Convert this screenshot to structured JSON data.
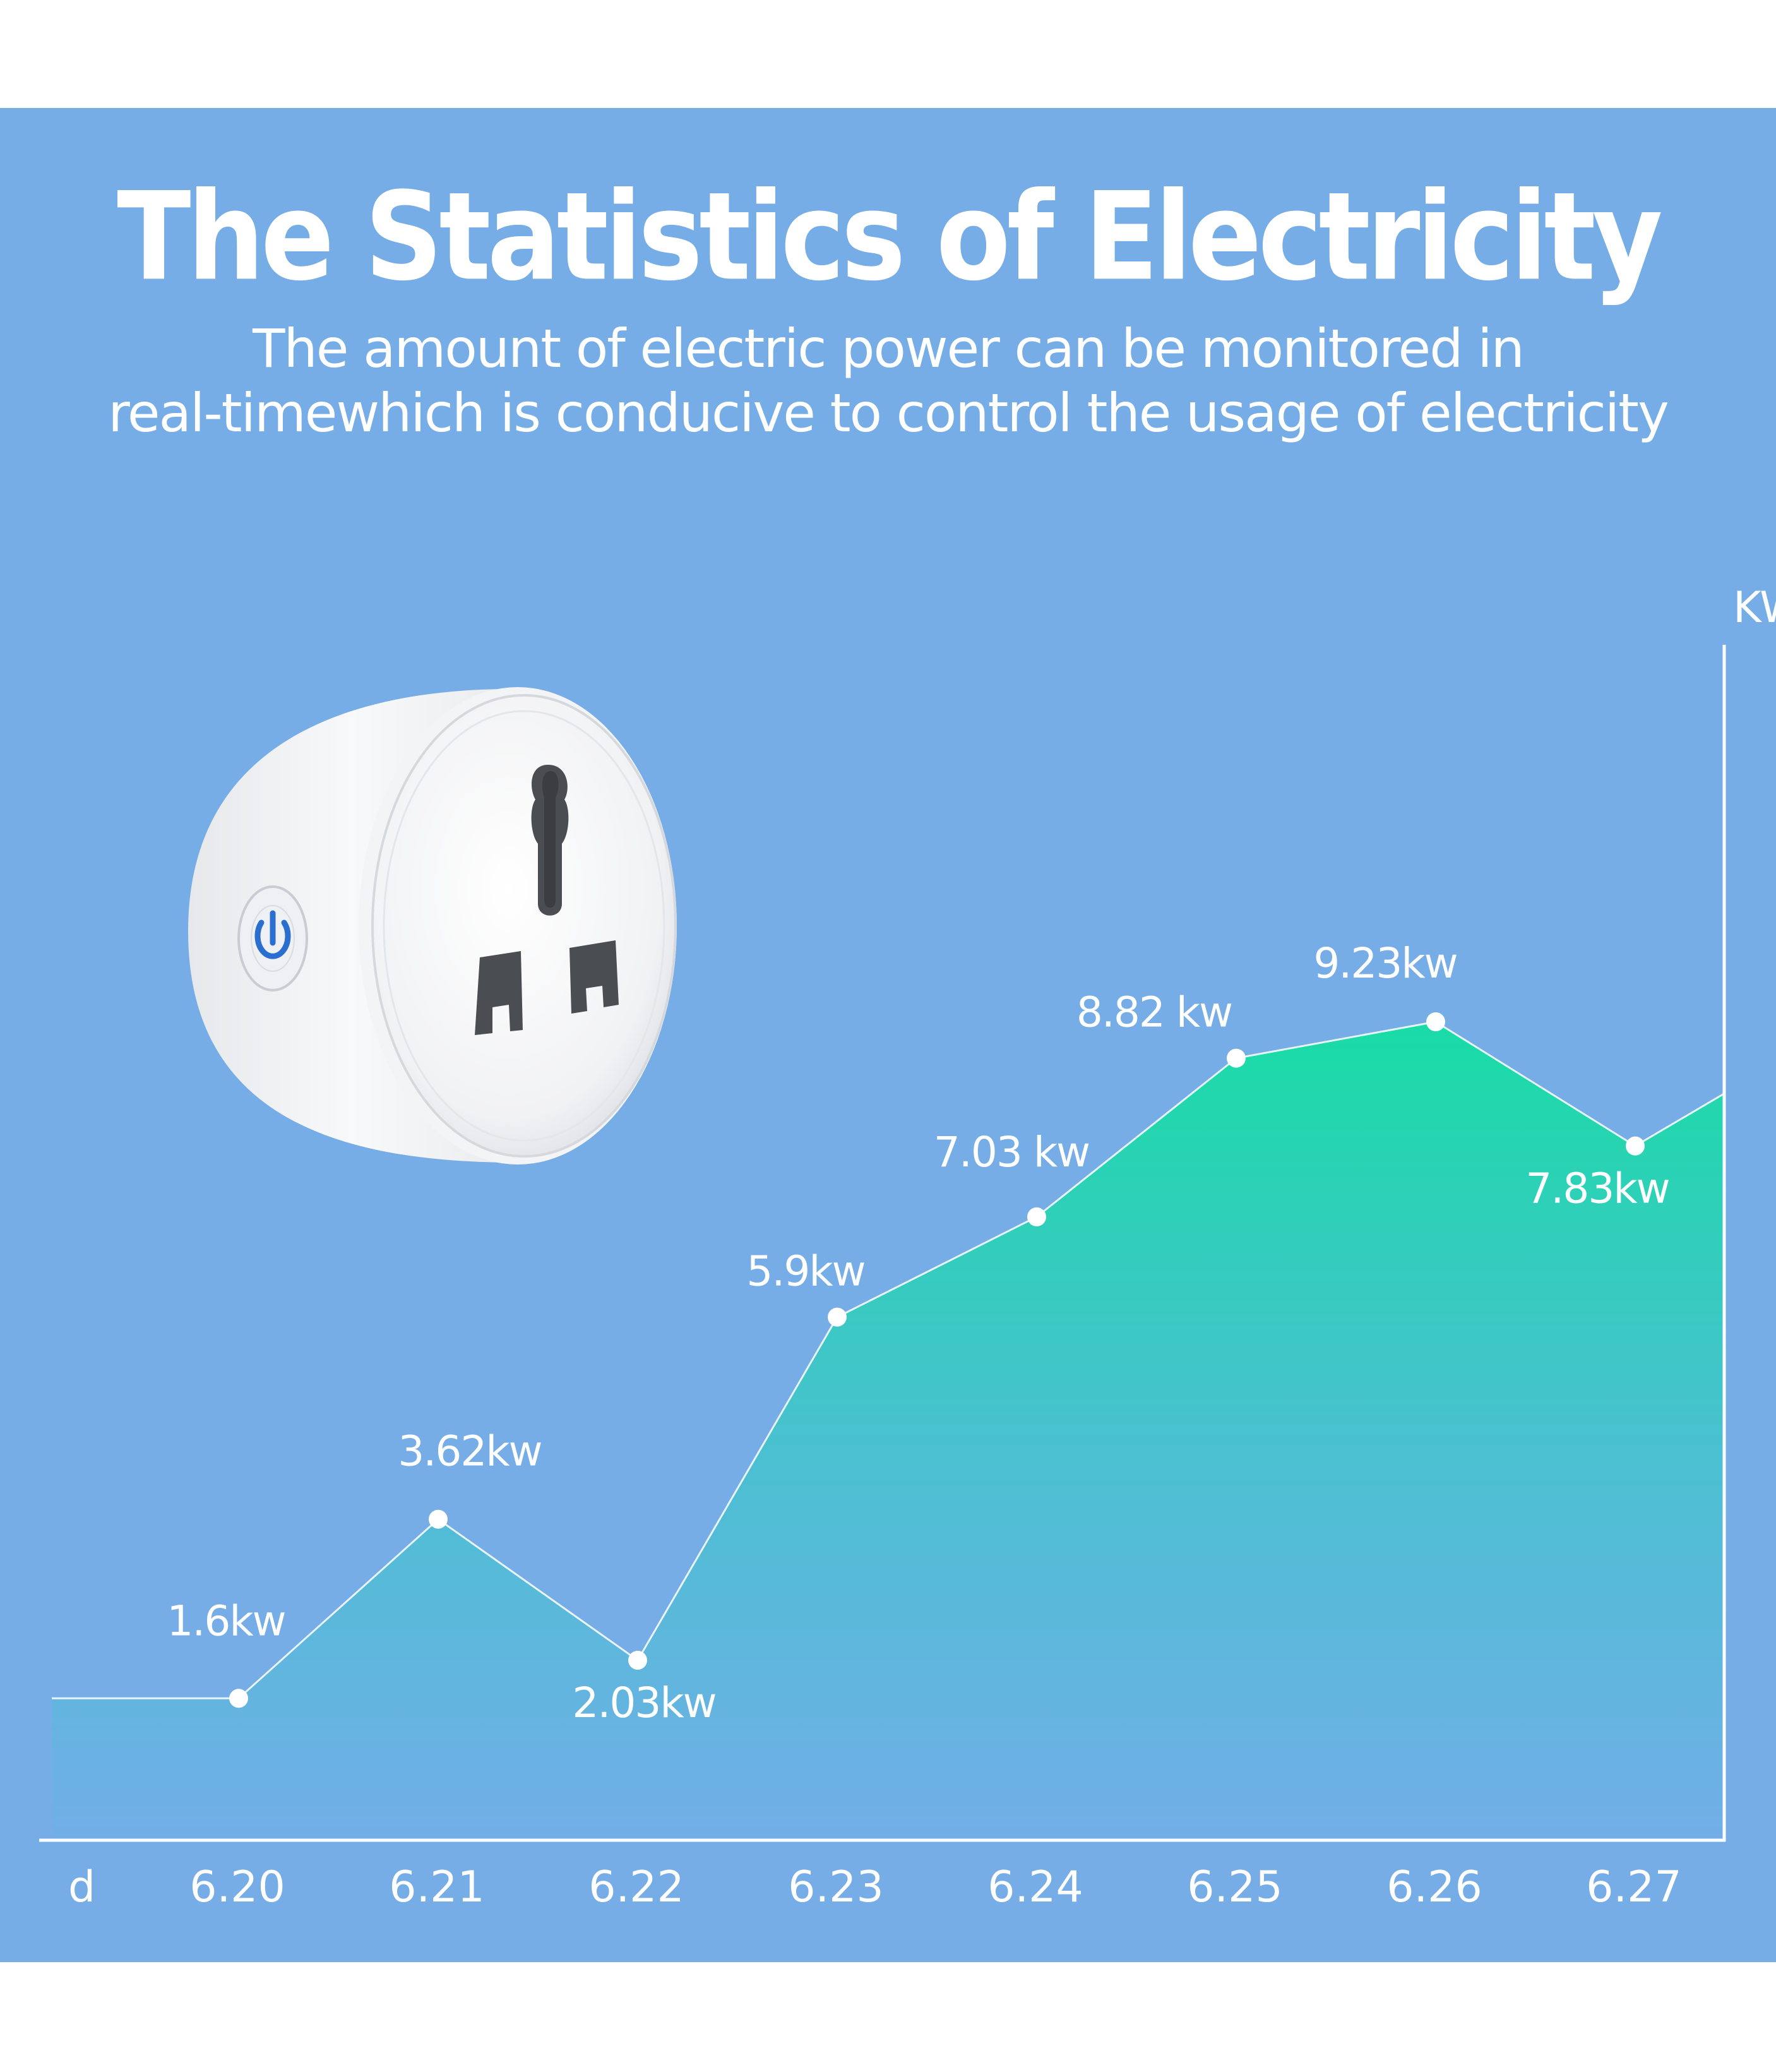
{
  "header": {
    "title": "The Statistics of Electricity",
    "subtitle_line1": "The amount of electric power can be monitored in",
    "subtitle_line2": "real-timewhich is conducive to control the usage of electricity"
  },
  "product": {
    "name": "smart-plug-image",
    "button_icon": "power-icon"
  },
  "colors": {
    "background": "#77ade6",
    "area_top": "#19dca6",
    "area_bottom": "#72aee8",
    "line": "#ffffff"
  },
  "chart_data": {
    "type": "area",
    "x_axis_label": "d",
    "y_axis_label": "KW",
    "categories": [
      "6.20",
      "6.21",
      "6.22",
      "6.23",
      "6.24",
      "6.25",
      "6.26",
      "6.27"
    ],
    "values": [
      1.6,
      3.62,
      2.03,
      5.9,
      7.03,
      8.82,
      9.23,
      7.83
    ],
    "data_labels": [
      "1.6kw",
      "3.62kw",
      "2.03kw",
      "5.9kw",
      "7.03 kw",
      "8.82 kw",
      "9.23kw",
      "7.83kw"
    ],
    "grid": false,
    "legend": "none"
  }
}
